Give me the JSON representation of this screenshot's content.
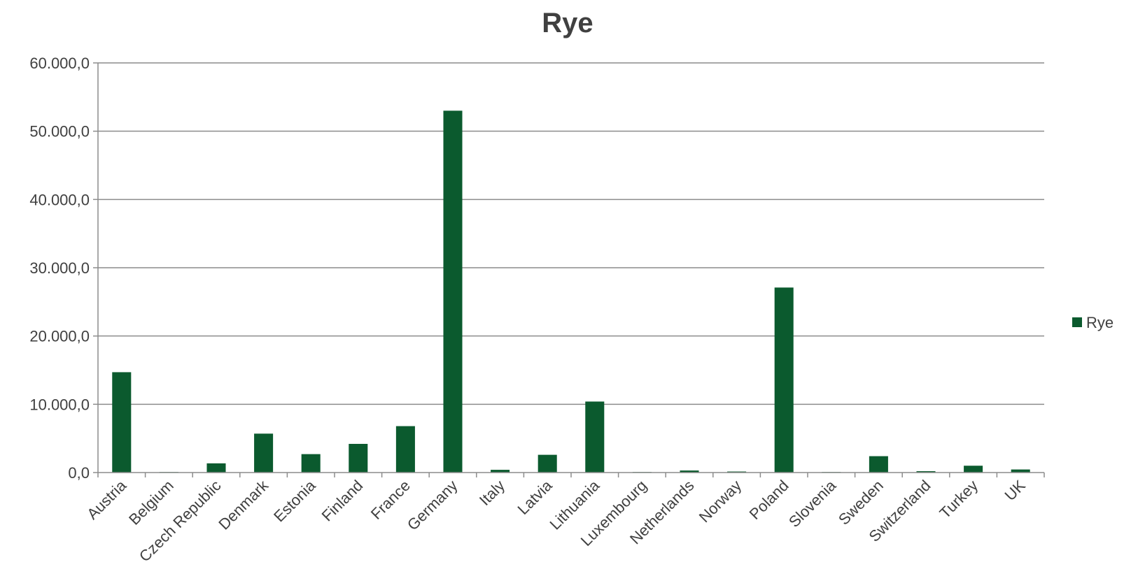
{
  "chart_data": {
    "type": "bar",
    "title": "Rye",
    "xlabel": "",
    "ylabel": "",
    "categories": [
      "Austria",
      "Belgium",
      "Czech Republic",
      "Denmark",
      "Estonia",
      "Finland",
      "France",
      "Germany",
      "Italy",
      "Latvia",
      "Lithuania",
      "Luxembourg",
      "Netherlands",
      "Norway",
      "Poland",
      "Slovenia",
      "Sweden",
      "Switzerland",
      "Turkey",
      "UK"
    ],
    "series": [
      {
        "name": "Rye",
        "color": "#0b5a2e",
        "values": [
          14700,
          50,
          1350,
          5700,
          2700,
          4200,
          6800,
          53000,
          400,
          2600,
          10400,
          50,
          300,
          150,
          27100,
          50,
          2400,
          200,
          1000,
          450
        ]
      }
    ],
    "ylim": [
      0,
      60000
    ],
    "yticks": [
      0,
      10000,
      20000,
      30000,
      40000,
      50000,
      60000
    ],
    "ytick_labels": [
      "0,0",
      "10.000,0",
      "20.000,0",
      "30.000,0",
      "40.000,0",
      "50.000,0",
      "60.000,0"
    ],
    "grid": true,
    "legend_position": "right",
    "colors": {
      "bar": "#0b5a2e",
      "grid": "#8c8c8c",
      "axis": "#8c8c8c",
      "text": "#404040",
      "title": "#404040"
    }
  }
}
